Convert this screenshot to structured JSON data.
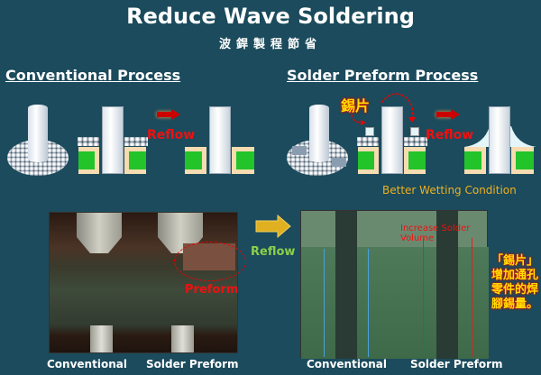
{
  "header": {
    "title": "Reduce Wave Soldering",
    "subtitle": "波銲製程節省"
  },
  "conventional": {
    "heading": "Conventional Process",
    "reflow_label": "Reflow"
  },
  "preform": {
    "heading": "Solder Preform Process",
    "reflow_label": "Reflow",
    "preform_tag": "錫片",
    "note": "Better Wetting Condition"
  },
  "photos": {
    "reflow_label": "Reflow",
    "left": {
      "preform_label": "Preform",
      "captions": [
        "Conventional",
        "Solder Preform"
      ]
    },
    "right": {
      "annotation": "Increase Solder Volume",
      "captions": [
        "Conventional",
        "Solder Preform"
      ]
    }
  },
  "side_note": "「錫片」增加通孔零件的焊腳錫量。",
  "colors": {
    "background": "#1b4b5c",
    "pad": "#22c42a",
    "accent_red": "#f01010",
    "accent_yellow": "#f0b020",
    "reflow_green": "#8ccf4a"
  }
}
